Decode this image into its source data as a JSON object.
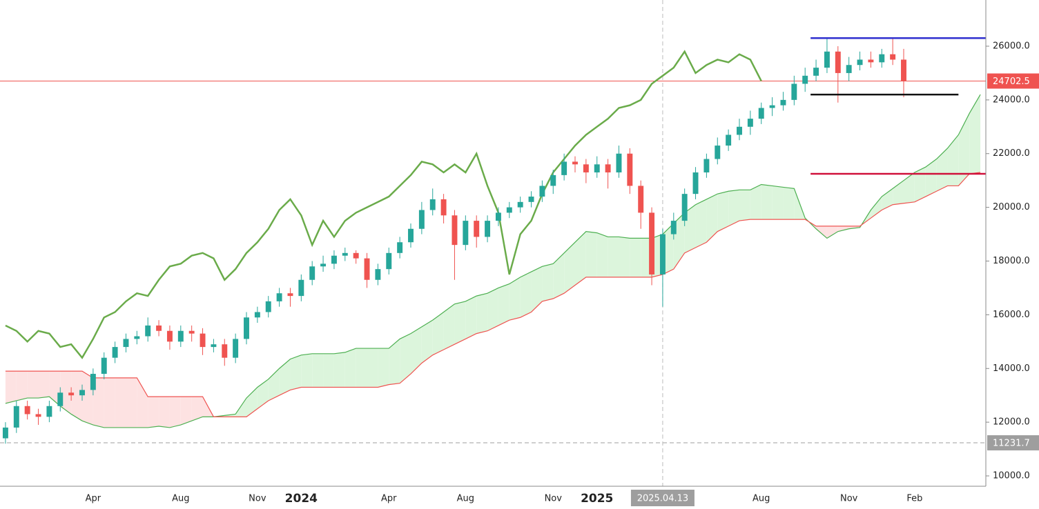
{
  "chart_data": {
    "type": "candlestick",
    "categories": [
      null,
      null,
      null,
      null,
      null,
      null,
      null,
      null,
      "Apr",
      null,
      null,
      null,
      null,
      null,
      null,
      null,
      "Aug",
      null,
      null,
      null,
      null,
      null,
      null,
      "Nov",
      null,
      null,
      null,
      "2024",
      null,
      null,
      null,
      null,
      null,
      null,
      null,
      "Apr",
      null,
      null,
      null,
      null,
      null,
      null,
      "Aug",
      null,
      null,
      null,
      null,
      null,
      null,
      null,
      "Nov",
      null,
      null,
      null,
      "2025",
      null,
      null,
      null,
      null,
      null,
      "2025.04.13",
      null,
      null,
      null,
      null,
      null,
      null,
      null,
      null,
      "Aug",
      null,
      null,
      null,
      null,
      null,
      null,
      null,
      "Nov",
      null,
      null,
      null,
      null,
      null,
      "Feb",
      null,
      null,
      null,
      null,
      null,
      null
    ],
    "open": [
      11400,
      11800,
      12600,
      12300,
      12200,
      12600,
      13100,
      13000,
      13200,
      13800,
      14400,
      14800,
      15100,
      15200,
      15600,
      15400,
      15000,
      15400,
      15300,
      14800,
      14900,
      14400,
      15100,
      15900,
      16100,
      16500,
      16800,
      16700,
      17300,
      17800,
      17900,
      18200,
      18300,
      18100,
      17300,
      17700,
      18300,
      18700,
      19200,
      19900,
      20300,
      19700,
      18600,
      19500,
      18900,
      19500,
      19800,
      20000,
      20200,
      20400,
      20800,
      21200,
      21700,
      21600,
      21300,
      21600,
      21300,
      22000,
      20800,
      19800,
      17500,
      19000,
      19500,
      20500,
      21300,
      21800,
      22300,
      22700,
      23000,
      23300,
      23700,
      23800,
      24000,
      24600,
      24900,
      25200,
      25800,
      25000,
      25300,
      25500,
      25400,
      25700,
      25500,
      null,
      null,
      null,
      null,
      null,
      null,
      null
    ],
    "high": [
      12000,
      12800,
      12800,
      12500,
      12800,
      13300,
      13300,
      13400,
      14000,
      14600,
      15000,
      15300,
      15400,
      15900,
      15800,
      15600,
      15600,
      15600,
      15500,
      15100,
      15100,
      15300,
      16100,
      16300,
      16700,
      17000,
      17000,
      17500,
      18000,
      18200,
      18400,
      18500,
      18400,
      18300,
      17900,
      18500,
      18900,
      19400,
      20200,
      20700,
      20500,
      19900,
      19700,
      19700,
      19700,
      20000,
      20200,
      20400,
      20600,
      21000,
      21400,
      22000,
      21900,
      21800,
      21900,
      21800,
      22300,
      22200,
      21000,
      20000,
      19200,
      19800,
      20700,
      21500,
      22000,
      22600,
      22900,
      23300,
      23600,
      23900,
      24100,
      24300,
      24900,
      25200,
      25500,
      26300,
      26000,
      25600,
      25800,
      25800,
      25900,
      26300,
      25900,
      null,
      null,
      null,
      null,
      null,
      null,
      null
    ],
    "low": [
      11200,
      11600,
      12100,
      11900,
      12000,
      12400,
      12800,
      12800,
      13000,
      13600,
      14200,
      14600,
      14900,
      15000,
      15200,
      14700,
      14800,
      15000,
      14500,
      14600,
      14100,
      14200,
      14900,
      15700,
      15900,
      16300,
      16300,
      16500,
      17100,
      17600,
      17700,
      18000,
      17900,
      17000,
      17100,
      17500,
      18100,
      18500,
      19000,
      19700,
      19400,
      17300,
      18400,
      18500,
      18700,
      19300,
      19600,
      19800,
      20000,
      20200,
      20500,
      21000,
      21300,
      20900,
      21100,
      20700,
      21100,
      20500,
      19200,
      17100,
      16300,
      18800,
      19300,
      20300,
      21100,
      21600,
      22100,
      22500,
      22700,
      23100,
      23400,
      23600,
      23800,
      24300,
      24700,
      25000,
      23900,
      24700,
      25100,
      25200,
      25200,
      25300,
      24100,
      null,
      null,
      null,
      null,
      null,
      null,
      null
    ],
    "close": [
      11800,
      12600,
      12300,
      12200,
      12600,
      13100,
      13000,
      13200,
      13800,
      14400,
      14800,
      15100,
      15200,
      15600,
      15400,
      15000,
      15400,
      15300,
      14800,
      14900,
      14400,
      15100,
      15900,
      16100,
      16500,
      16800,
      16700,
      17300,
      17800,
      17900,
      18200,
      18300,
      18100,
      17300,
      17700,
      18300,
      18700,
      19200,
      19900,
      20300,
      19700,
      18600,
      19500,
      18900,
      19500,
      19800,
      20000,
      20200,
      20400,
      20800,
      21200,
      21700,
      21600,
      21300,
      21600,
      21300,
      22000,
      20800,
      19800,
      17500,
      19000,
      19500,
      20500,
      21300,
      21800,
      22300,
      22700,
      23000,
      23300,
      23700,
      23800,
      24000,
      24600,
      24900,
      25200,
      25800,
      25000,
      25300,
      25500,
      25400,
      25700,
      25500,
      24702.5,
      null,
      null,
      null,
      null,
      null,
      null,
      null
    ],
    "up_color": "#26a69a",
    "down_color": "#ef5350",
    "cloud": {
      "span_a": [
        12700,
        12800,
        12900,
        12900,
        12950,
        12600,
        12300,
        12050,
        11900,
        11800,
        11800,
        11800,
        11800,
        11800,
        11850,
        11800,
        11900,
        12050,
        12200,
        12200,
        12250,
        12300,
        12900,
        13300,
        13600,
        14000,
        14350,
        14500,
        14550,
        14550,
        14550,
        14600,
        14750,
        14750,
        14750,
        14750,
        15100,
        15300,
        15550,
        15800,
        16100,
        16400,
        16500,
        16700,
        16800,
        17000,
        17150,
        17400,
        17600,
        17800,
        17900,
        18300,
        18700,
        19100,
        19050,
        18900,
        18900,
        18850,
        18850,
        18850,
        19000,
        19400,
        19800,
        20100,
        20300,
        20500,
        20600,
        20650,
        20650,
        20850,
        20800,
        20750,
        20700,
        19600,
        19200,
        18850,
        19100,
        19200,
        19250,
        19900,
        20400,
        20700,
        21000,
        21300,
        21500,
        21800,
        22200,
        22700,
        23500,
        24200
      ],
      "span_b": [
        13900,
        13900,
        13900,
        13900,
        13900,
        13900,
        13900,
        13900,
        13650,
        13650,
        13650,
        13650,
        13650,
        12950,
        12950,
        12950,
        12950,
        12950,
        12950,
        12200,
        12200,
        12200,
        12200,
        12500,
        12800,
        13000,
        13200,
        13300,
        13300,
        13300,
        13300,
        13300,
        13300,
        13300,
        13300,
        13400,
        13450,
        13800,
        14200,
        14500,
        14700,
        14900,
        15100,
        15300,
        15400,
        15600,
        15800,
        15900,
        16100,
        16500,
        16600,
        16800,
        17100,
        17400,
        17400,
        17400,
        17400,
        17400,
        17400,
        17400,
        17500,
        17700,
        18300,
        18500,
        18700,
        19100,
        19300,
        19500,
        19550,
        19550,
        19550,
        19550,
        19550,
        19550,
        19300,
        19300,
        19300,
        19300,
        19300,
        19600,
        19900,
        20100,
        20150,
        20200,
        20400,
        20600,
        20800,
        20800,
        21250,
        21300
      ],
      "span_a_color": "#4caf50",
      "span_b_color": "#ef5350",
      "bull_fill": "#dcf5dc",
      "bear_fill": "#fde2e2"
    },
    "lagging_span": {
      "color": "#6aab4a",
      "values": [
        15600,
        15400,
        15000,
        15400,
        15300,
        14800,
        14900,
        14400,
        15100,
        15900,
        16100,
        16500,
        16800,
        16700,
        17300,
        17800,
        17900,
        18200,
        18300,
        18100,
        17300,
        17700,
        18300,
        18700,
        19200,
        19900,
        20300,
        19700,
        18600,
        19500,
        18900,
        19500,
        19800,
        20000,
        20200,
        20400,
        20800,
        21200,
        21700,
        21600,
        21300,
        21600,
        21300,
        22000,
        20800,
        19800,
        17500,
        19000,
        19500,
        20500,
        21300,
        21800,
        22300,
        22700,
        23000,
        23300,
        23700,
        23800,
        24000,
        24600,
        24900,
        25200,
        25800,
        25000,
        25300,
        25500,
        25400,
        25700,
        25500,
        24702.5,
        null,
        null,
        null,
        null,
        null,
        null,
        null,
        null,
        null,
        null,
        null,
        null,
        null,
        null,
        null,
        null,
        null,
        null,
        null,
        null
      ]
    },
    "ylim": [
      9615,
      27720
    ],
    "yticks": [
      {
        "value": 10000,
        "label": "10000.0"
      },
      {
        "value": 12000,
        "label": "12000.0"
      },
      {
        "value": 14000,
        "label": "14000.0"
      },
      {
        "value": 16000,
        "label": "16000.0"
      },
      {
        "value": 18000,
        "label": "18000.0"
      },
      {
        "value": 20000,
        "label": "20000.0"
      },
      {
        "value": 22000,
        "label": "22000.0"
      },
      {
        "value": 24000,
        "label": "24000.0"
      },
      {
        "value": 26000,
        "label": "26000.0"
      }
    ],
    "price_lines": [
      {
        "value": 24702.5,
        "color": "#ef5350",
        "style": "solid"
      },
      {
        "value": 11231.7,
        "color": "#9e9e9e",
        "style": "dashed"
      }
    ],
    "hlines": [
      {
        "value": 26300,
        "from": 74,
        "to": 89,
        "color": "#2f2fcf"
      },
      {
        "value": 24200,
        "from": 74,
        "to": 87,
        "color": "#111111"
      },
      {
        "value": 21250,
        "from": 74,
        "to": 89,
        "color": "#d0103a"
      }
    ],
    "crosshair_index": 60
  }
}
